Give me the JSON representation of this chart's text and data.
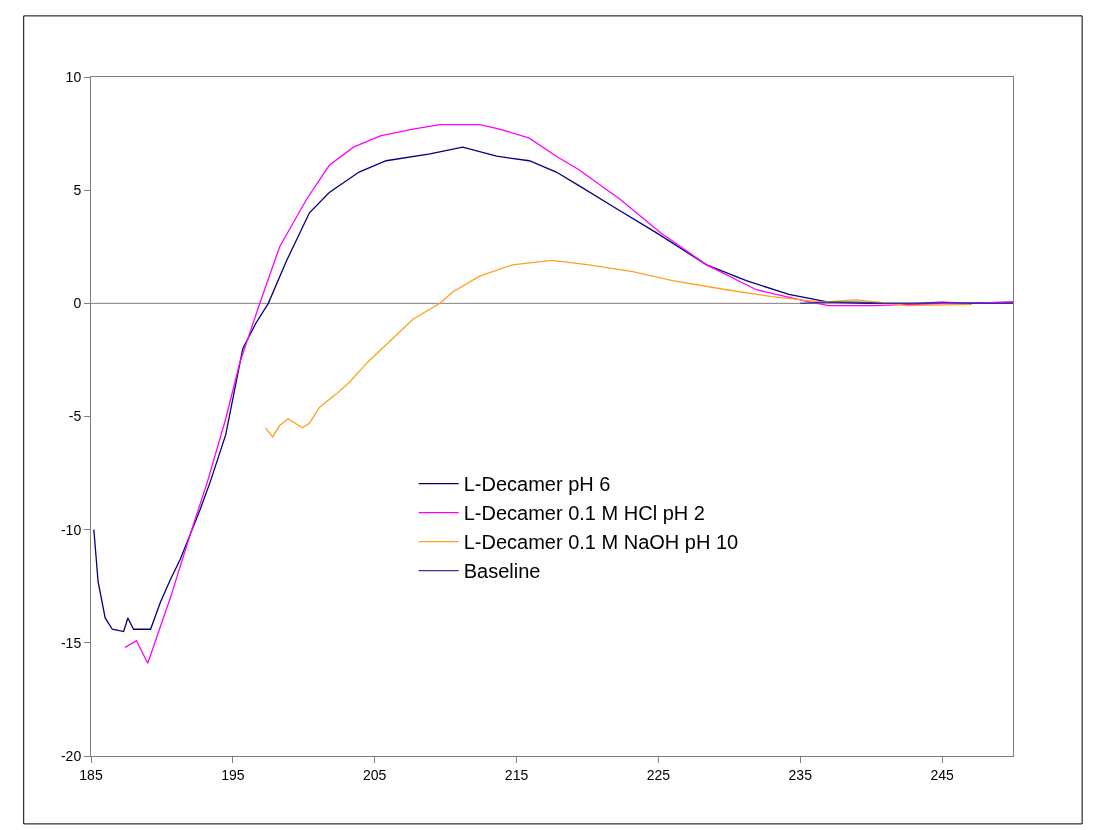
{
  "chart_data": {
    "type": "line",
    "xlim": [
      185,
      250
    ],
    "xticks": [
      185,
      195,
      205,
      215,
      225,
      235,
      245
    ],
    "ylim": [
      -20,
      10
    ],
    "yticks": [
      -20,
      -15,
      -10,
      -5,
      0,
      5,
      10
    ],
    "grid": false,
    "legend": "center",
    "ref_lines": [
      {
        "axis": "y",
        "value": 0,
        "color": "#808080"
      }
    ],
    "marker": "none",
    "line_style": "solid",
    "series": [
      {
        "name": "L-Decamer pH 6",
        "color": "#000080",
        "x": [
          185.2,
          185.5,
          186,
          186.5,
          187.3,
          187.6,
          188,
          189.2,
          189.9,
          190.6,
          191.3,
          192,
          192.7,
          193.4,
          194.5,
          195.7,
          196.6,
          197.5,
          198.8,
          200.4,
          201.8,
          203.9,
          205.8,
          208.9,
          211.2,
          213.6,
          215.9,
          217.8,
          219.4,
          222,
          224.9,
          228.4,
          231.2,
          234.2,
          237,
          240,
          243,
          246,
          250
        ],
        "values": [
          -10,
          -12.3,
          -13.9,
          -14.4,
          -14.5,
          -13.9,
          -14.4,
          -14.4,
          -13.2,
          -12.2,
          -11.3,
          -10.2,
          -9.1,
          -7.9,
          -5.8,
          -2.0,
          -0.9,
          0,
          1.9,
          4.0,
          4.9,
          5.8,
          6.3,
          6.6,
          6.9,
          6.5,
          6.3,
          5.8,
          5.2,
          4.2,
          3.1,
          1.7,
          1.0,
          0.4,
          0.05,
          0,
          0,
          0,
          0.05
        ]
      },
      {
        "name": "L-Decamer 0.1 M HCl pH 2",
        "color": "#ff00ff",
        "x": [
          187.4,
          188.2,
          189,
          189.5,
          190.6,
          192,
          193.2,
          194.5,
          195.5,
          196.9,
          198.3,
          200.2,
          201.8,
          203.5,
          205.4,
          207.7,
          209.6,
          212.4,
          213.8,
          215.9,
          217.8,
          219.4,
          222.3,
          225.2,
          228.4,
          231.9,
          235.4,
          237,
          240.1,
          243,
          246,
          250
        ],
        "values": [
          -15.2,
          -14.9,
          -15.9,
          -15.0,
          -13.0,
          -10.2,
          -7.9,
          -5.1,
          -2.6,
          0,
          2.5,
          4.6,
          6.1,
          6.9,
          7.4,
          7.7,
          7.9,
          7.9,
          7.7,
          7.3,
          6.5,
          5.9,
          4.6,
          3.1,
          1.7,
          0.6,
          0.1,
          -0.1,
          -0.1,
          -0.05,
          0,
          0.05
        ]
      },
      {
        "name": "L-Decamer 0.1 M NaOH pH 10",
        "color": "#ffa020",
        "x": [
          197.3,
          197.8,
          198.3,
          198.9,
          199.9,
          200.4,
          201.1,
          202.3,
          203.2,
          204.5,
          207.7,
          209.6,
          210.5,
          212.4,
          214.7,
          217.5,
          220.1,
          223.2,
          226,
          229.8,
          233,
          236.5,
          238.9,
          241.3,
          242.5,
          247.1
        ],
        "values": [
          -5.5,
          -5.9,
          -5.4,
          -5.1,
          -5.5,
          -5.3,
          -4.6,
          -4.0,
          -3.5,
          -2.6,
          -0.7,
          0,
          0.5,
          1.2,
          1.7,
          1.9,
          1.7,
          1.4,
          1.0,
          0.6,
          0.3,
          0.05,
          0.15,
          0,
          -0.1,
          -0.05
        ]
      },
      {
        "name": "Baseline",
        "color": "#333399",
        "x": [
          235,
          237,
          239,
          241,
          243,
          245,
          247,
          250
        ],
        "values": [
          0,
          0.05,
          0.05,
          0,
          0,
          0.05,
          0,
          0
        ]
      }
    ]
  }
}
